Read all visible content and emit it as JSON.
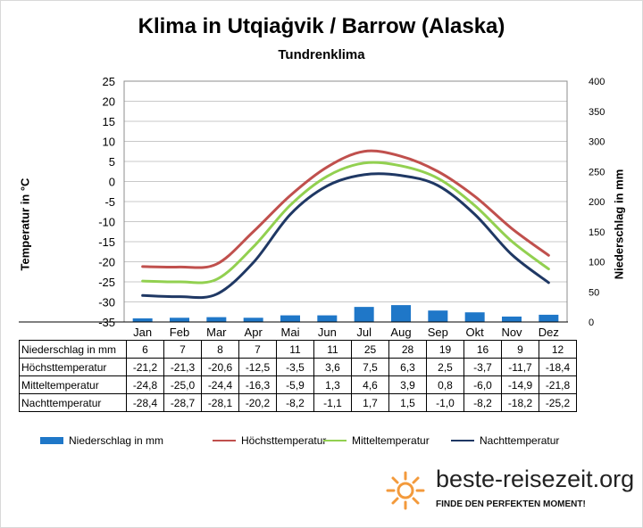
{
  "chart_data": {
    "type": "bar+line",
    "title": "Klima in Utqiaġvik / Barrow (Alaska)",
    "subtitle": "Tundrenklima",
    "ylabel_left": "Temperatur in °C",
    "ylabel_right": "Niederschlag in mm",
    "ylim_left": [
      -35,
      25
    ],
    "ylim_right": [
      0,
      400
    ],
    "yticks_left": [
      "25",
      "20",
      "15",
      "10",
      "5",
      "0",
      "-5",
      "-10",
      "-15",
      "-20",
      "-25",
      "-30",
      "-35"
    ],
    "yticks_right": [
      "400",
      "350",
      "300",
      "250",
      "200",
      "150",
      "100",
      "50",
      "0"
    ],
    "categories": [
      "Jan",
      "Feb",
      "Mar",
      "Apr",
      "Mai",
      "Jun",
      "Jul",
      "Aug",
      "Sep",
      "Okt",
      "Nov",
      "Dez"
    ],
    "grid": true,
    "legend_position": "bottom",
    "precipitation": {
      "name": "Niederschlag in mm",
      "color": "#1f77c8",
      "values": [
        6,
        7,
        8,
        7,
        11,
        11,
        25,
        28,
        19,
        16,
        9,
        12
      ],
      "labels": [
        "6",
        "7",
        "8",
        "7",
        "11",
        "11",
        "25",
        "28",
        "19",
        "16",
        "9",
        "12"
      ]
    },
    "series": [
      {
        "name": "Höchsttemperatur",
        "color": "#c0504d",
        "values": [
          -21.2,
          -21.3,
          -20.6,
          -12.5,
          -3.5,
          3.6,
          7.5,
          6.3,
          2.5,
          -3.7,
          -11.7,
          -18.4
        ],
        "labels": [
          "-21,2",
          "-21,3",
          "-20,6",
          "-12,5",
          "-3,5",
          "3,6",
          "7,5",
          "6,3",
          "2,5",
          "-3,7",
          "-11,7",
          "-18,4"
        ]
      },
      {
        "name": "Mitteltemperatur",
        "color": "#92d050",
        "values": [
          -24.8,
          -25.0,
          -24.4,
          -16.3,
          -5.9,
          1.3,
          4.6,
          3.9,
          0.8,
          -6.0,
          -14.9,
          -21.8
        ],
        "labels": [
          "-24,8",
          "-25,0",
          "-24,4",
          "-16,3",
          "-5,9",
          "1,3",
          "4,6",
          "3,9",
          "0,8",
          "-6,0",
          "-14,9",
          "-21,8"
        ]
      },
      {
        "name": "Nachttemperatur",
        "color": "#1f3864",
        "values": [
          -28.4,
          -28.7,
          -28.1,
          -20.2,
          -8.2,
          -1.1,
          1.7,
          1.5,
          -1.0,
          -8.2,
          -18.2,
          -25.2
        ],
        "labels": [
          "-28,4",
          "-28,7",
          "-28,1",
          "-20,2",
          "-8,2",
          "-1,1",
          "1,7",
          "1,5",
          "-1,0",
          "-8,2",
          "-18,2",
          "-25,2"
        ]
      }
    ],
    "table_row_labels": [
      "Niederschlag in mm",
      "Höchsttemperatur",
      "Mitteltemperatur",
      "Nachttemperatur"
    ]
  },
  "brand": {
    "name": "beste-reisezeit.org",
    "slogan": "FINDE DEN PERFEKTEN MOMENT!",
    "accent_color": "#f39a3c",
    "icon": "sun-icon"
  }
}
